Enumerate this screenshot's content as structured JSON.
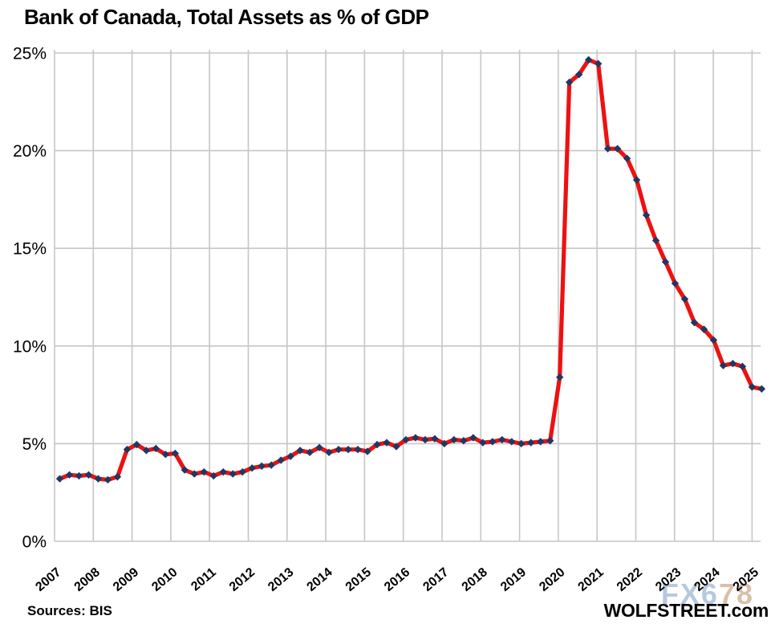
{
  "title": "Bank of Canada, Total Assets as % of GDP",
  "source_label": "Sources: BIS",
  "brand": "WOLFSTREET.com",
  "watermark": {
    "part1": "FX6",
    "part2": "78"
  },
  "colors": {
    "line": "#ee1111",
    "marker": "#1f3864",
    "gridline": "#c6c6c6",
    "axis_text": "#000000",
    "watermark_blue": "#b7c9de",
    "watermark_tan": "#d9c0a8"
  },
  "chart_data": {
    "type": "line",
    "title": "Bank of Canada, Total Assets as % of GDP",
    "series_name": "Bank of Canada total assets as % of GDP",
    "frequency": "quarterly",
    "start_period": "2007-Q1",
    "end_period": "2025-Q2",
    "ylim": [
      0,
      25
    ],
    "grid": true,
    "y_ticks": [
      0,
      5,
      10,
      15,
      20,
      25
    ],
    "y_tick_labels": [
      "0%",
      "5%",
      "10%",
      "15%",
      "20%",
      "25%"
    ],
    "x_tick_years": [
      "2007",
      "2008",
      "2009",
      "2010",
      "2011",
      "2012",
      "2013",
      "2014",
      "2015",
      "2016",
      "2017",
      "2018",
      "2019",
      "2020",
      "2021",
      "2022",
      "2023",
      "2024",
      "2025"
    ],
    "values": [
      3.2,
      3.4,
      3.35,
      3.4,
      3.2,
      3.15,
      3.3,
      4.7,
      4.95,
      4.65,
      4.75,
      4.45,
      4.5,
      3.65,
      3.45,
      3.55,
      3.35,
      3.55,
      3.45,
      3.55,
      3.75,
      3.85,
      3.9,
      4.15,
      4.35,
      4.65,
      4.55,
      4.8,
      4.55,
      4.7,
      4.7,
      4.7,
      4.6,
      4.95,
      5.05,
      4.85,
      5.2,
      5.3,
      5.2,
      5.25,
      5.0,
      5.2,
      5.15,
      5.3,
      5.05,
      5.1,
      5.2,
      5.1,
      5.0,
      5.05,
      5.1,
      5.15,
      8.4,
      23.5,
      23.9,
      24.65,
      24.45,
      20.1,
      20.1,
      19.6,
      18.5,
      16.7,
      15.4,
      14.3,
      13.2,
      12.4,
      11.2,
      10.85,
      10.3,
      9.0,
      9.1,
      8.95,
      7.9,
      7.8
    ]
  }
}
